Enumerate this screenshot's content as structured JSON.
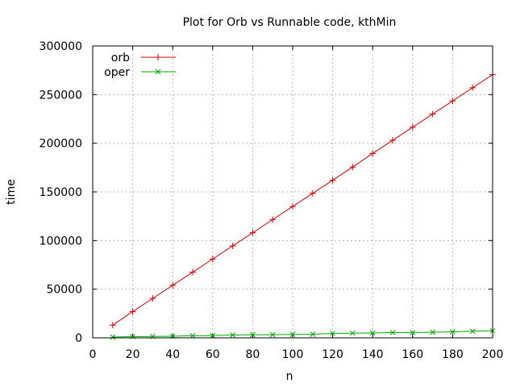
{
  "chart_data": {
    "type": "line",
    "title": "Plot for Orb vs Runnable code, kthMin",
    "xlabel": "n",
    "ylabel": "time",
    "xlim": [
      0,
      200
    ],
    "ylim": [
      0,
      300000
    ],
    "xticks": [
      "0",
      "20",
      "40",
      "60",
      "80",
      "100",
      "120",
      "140",
      "160",
      "180",
      "200"
    ],
    "yticks": [
      "0",
      "50000",
      "100000",
      "150000",
      "200000",
      "250000",
      "300000"
    ],
    "grid": true,
    "legend_position": "top-left",
    "x": [
      10,
      20,
      30,
      40,
      50,
      60,
      70,
      80,
      90,
      100,
      110,
      120,
      130,
      140,
      150,
      160,
      170,
      180,
      190,
      200
    ],
    "series": [
      {
        "name": "orb",
        "color": "#dd0000",
        "marker": "plus",
        "values": [
          13000,
          27000,
          40500,
          54000,
          67500,
          81000,
          94500,
          108000,
          121500,
          135000,
          148500,
          162000,
          175500,
          189500,
          203000,
          216500,
          230000,
          243500,
          257000,
          270500
        ]
      },
      {
        "name": "oper",
        "color": "#00aa00",
        "marker": "cross",
        "values": [
          800,
          1200,
          1500,
          1700,
          2200,
          2400,
          2900,
          3100,
          3200,
          3500,
          3600,
          4600,
          4800,
          5000,
          5400,
          5500,
          5700,
          6200,
          6800,
          7200
        ]
      }
    ]
  }
}
